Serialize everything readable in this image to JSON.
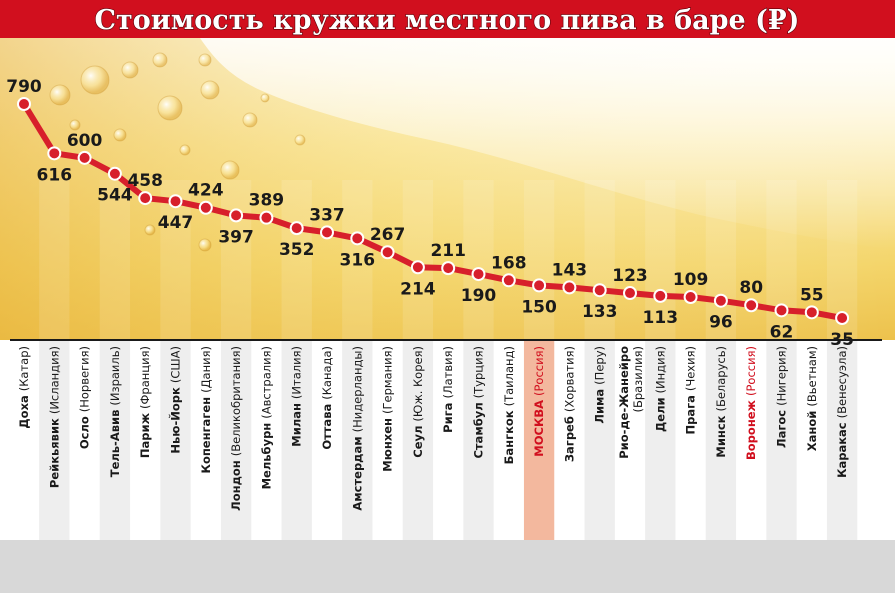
{
  "chart_data": {
    "type": "line",
    "title": "Стоимость кружки местного пива в баре (₽)",
    "categories": [
      {
        "main": "Доха",
        "country": "(Катар)"
      },
      {
        "main": "Рейкьявик",
        "country": "(Исландия)"
      },
      {
        "main": "Осло",
        "country": "(Норвегия)"
      },
      {
        "main": "Тель-Авив",
        "country": "(Израиль)"
      },
      {
        "main": "Париж",
        "country": "(Франция)"
      },
      {
        "main": "Нью-Йорк",
        "country": "(США)"
      },
      {
        "main": "Копенгаген",
        "country": "(Дания)"
      },
      {
        "main": "Лондон",
        "country": "(Великобритания)"
      },
      {
        "main": "Мельбурн",
        "country": "(Австралия)"
      },
      {
        "main": "Милан",
        "country": "(Италия)"
      },
      {
        "main": "Оттава",
        "country": "(Канада)"
      },
      {
        "main": "Амстердам",
        "country": "(Нидерланды)"
      },
      {
        "main": "Мюнхен",
        "country": "(Германия)"
      },
      {
        "main": "Сеул",
        "country": "(Юж. Корея)"
      },
      {
        "main": "Рига",
        "country": "(Латвия)"
      },
      {
        "main": "Стамбул",
        "country": "(Турция)"
      },
      {
        "main": "Бангкок",
        "country": "(Таиланд)"
      },
      {
        "main": "МОСКВА",
        "country": "(Россия)",
        "highlight": true
      },
      {
        "main": "Загреб",
        "country": "(Хорватия)"
      },
      {
        "main": "Лима",
        "country": "(Перу)"
      },
      {
        "main": "Рио-де-Жанейро",
        "country": "(Бразилия)",
        "two_lines": true
      },
      {
        "main": "Дели",
        "country": "(Индия)"
      },
      {
        "main": "Прага",
        "country": "(Чехия)"
      },
      {
        "main": "Минск",
        "country": "(Беларусь)"
      },
      {
        "main": "Воронеж",
        "country": "(Россия)",
        "highlight": true
      },
      {
        "main": "Лагос",
        "country": "(Нигерия)"
      },
      {
        "main": "Ханой",
        "country": "(Вьетнам)"
      },
      {
        "main": "Каракас",
        "country": "(Венесуэла)"
      }
    ],
    "values": [
      790,
      616,
      600,
      544,
      458,
      447,
      424,
      397,
      389,
      352,
      337,
      316,
      267,
      214,
      211,
      190,
      168,
      150,
      143,
      133,
      123,
      113,
      109,
      96,
      80,
      62,
      55,
      35
    ],
    "label_positions": [
      "above",
      "below",
      "above",
      "below",
      "above",
      "below",
      "above",
      "below",
      "above",
      "below",
      "above",
      "below",
      "above",
      "below",
      "above",
      "below",
      "above",
      "below",
      "above",
      "below",
      "above",
      "below",
      "above",
      "below",
      "above",
      "below",
      "above",
      "below"
    ],
    "ylim": [
      0,
      800
    ],
    "grid": false,
    "colors": {
      "title_bg": "#d10f1e",
      "title_text": "#ffffff",
      "line": "#d71f2b",
      "marker_fill": "#d71f2b",
      "marker_ring": "#ffffff",
      "highlight_text": "#d10f1e",
      "highlight_column": "#f3b89e",
      "label_text": "#1a1a1a",
      "beer_light": "#fbf3c8",
      "beer_mid": "#f5d670",
      "beer_dark": "#e8b23a",
      "footer": "#d8d8d8"
    }
  }
}
